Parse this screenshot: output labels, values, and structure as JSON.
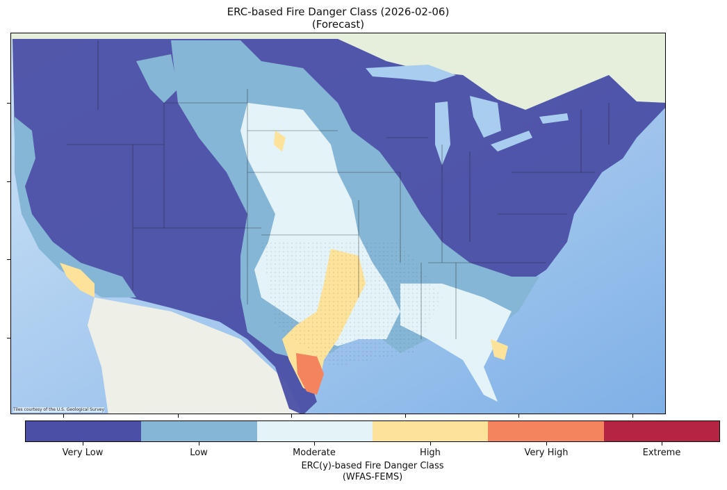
{
  "title": {
    "line1": "ERC-based Fire Danger Class (2026-02-06)",
    "line2": "(Forecast)"
  },
  "map": {
    "attribution": "Tiles courtesy of the U.S. Geological Survey",
    "colors": {
      "ocean": "#b9d9f5",
      "land": "#e9eedd"
    }
  },
  "colorbar": {
    "classes": [
      {
        "label": "Very Low",
        "color": "#4b4fa5"
      },
      {
        "label": "Low",
        "color": "#86b6d6"
      },
      {
        "label": "Moderate",
        "color": "#e4f3f7"
      },
      {
        "label": "High",
        "color": "#fde29a"
      },
      {
        "label": "Very High",
        "color": "#f4845e"
      },
      {
        "label": "Extreme",
        "color": "#b52443"
      }
    ],
    "title_line1": "ERC(y)-based Fire Danger Class",
    "title_line2": "(WFAS-FEMS)"
  }
}
